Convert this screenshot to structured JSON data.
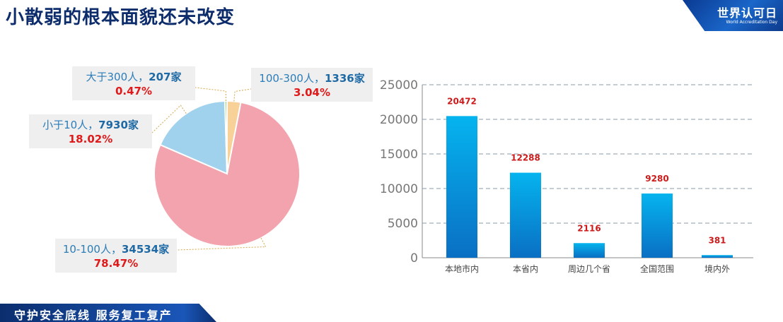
{
  "header": {
    "title": "小散弱的根本面貌还未改变",
    "brand": "世界认可日",
    "brand_sub": "World Accreditation Day"
  },
  "footer": {
    "slogan": "守护安全底线 服务复工复产"
  },
  "colors": {
    "pie": [
      "#f3a3ae",
      "#a0d2ee",
      "#9ad063",
      "#f8d198"
    ],
    "bar_top": "#05b4ee",
    "bar_bottom": "#0a6fc3",
    "grid": "#8899aa"
  },
  "chart_data": [
    {
      "type": "pie",
      "title": "",
      "slices": [
        {
          "name": "10-100人",
          "count_label": "34534家",
          "percent_label": "78.47%",
          "value": 34534
        },
        {
          "name": "小于10人",
          "count_label": "7930家",
          "percent_label": "18.02%",
          "value": 7930
        },
        {
          "name": "大于300人",
          "count_label": "207家",
          "percent_label": "0.47%",
          "value": 207
        },
        {
          "name": "100-300人",
          "count_label": "1336家",
          "percent_label": "3.04%",
          "value": 1336
        }
      ]
    },
    {
      "type": "bar",
      "title": "",
      "categories": [
        "本地市内",
        "本省内",
        "周边几个省",
        "全国范围",
        "境内外"
      ],
      "values": [
        20472,
        12288,
        2116,
        9280,
        381
      ],
      "ylim": [
        0,
        25000
      ],
      "yticks": [
        0,
        5000,
        10000,
        15000,
        20000,
        25000
      ],
      "xlabel": "",
      "ylabel": "",
      "grid": true
    }
  ]
}
